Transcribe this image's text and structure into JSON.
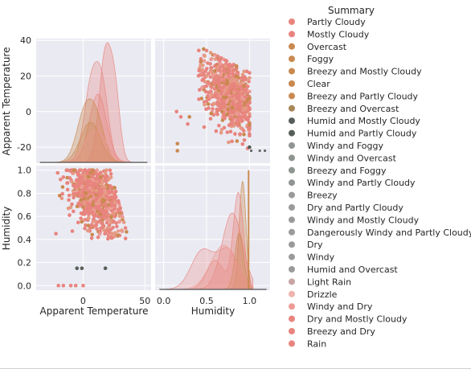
{
  "chart_data": {
    "type": "scatter",
    "kind": "pairplot",
    "variables": [
      "Apparent Temperature",
      "Humidity"
    ],
    "xlabels": [
      "Apparent Temperature",
      "Humidity"
    ],
    "ylabels": [
      "Apparent Temperature",
      "Humidity"
    ],
    "axes": {
      "apparent_temperature": {
        "range": [
          -38,
          55
        ],
        "ticks": [
          0,
          50
        ],
        "row_range": [
          -29,
          41
        ],
        "row_ticks": [
          -20,
          0,
          20,
          40
        ]
      },
      "humidity": {
        "range": [
          -0.1,
          1.24
        ],
        "ticks": [
          0.0,
          0.5,
          1.0
        ],
        "row_range": [
          -0.04,
          1.04
        ],
        "row_ticks": [
          0.0,
          0.2,
          0.4,
          0.6,
          0.8,
          1.0
        ]
      }
    },
    "grid": true,
    "diagonal": "kde",
    "legend": {
      "title": "Summary",
      "placement": "right",
      "entries": [
        "Partly Cloudy",
        "Mostly Cloudy",
        "Overcast",
        "Foggy",
        "Breezy and Mostly Cloudy",
        "Clear",
        "Breezy and Partly Cloudy",
        "Breezy and Overcast",
        "Humid and Mostly Cloudy",
        "Humid and Partly Cloudy",
        "Windy and Foggy",
        "Windy and Overcast",
        "Breezy and Foggy",
        "Windy and Partly Cloudy",
        "Breezy",
        "Dry and Partly Cloudy",
        "Windy and Mostly Cloudy",
        "Dangerously Windy and Partly Cloudy",
        "Dry",
        "Windy",
        "Humid and Overcast",
        "Light Rain",
        "Drizzle",
        "Windy and Dry",
        "Dry and Mostly Cloudy",
        "Breezy and Dry",
        "Rain"
      ],
      "colors": [
        "#e8847e",
        "#e8847e",
        "#c9894f",
        "#c9894f",
        "#c9894f",
        "#c9894f",
        "#c9894f",
        "#a78757",
        "#575f5a",
        "#575f5a",
        "#8f9590",
        "#8f9590",
        "#8f9590",
        "#8f9590",
        "#9a9a9a",
        "#9a9a9a",
        "#9a9a9a",
        "#9a9a9a",
        "#9a9a9a",
        "#9a9a9a",
        "#9a9a9a",
        "#c7a5a3",
        "#f0b3ad",
        "#ec9b95",
        "#e8847e",
        "#e8847e",
        "#e8847e"
      ]
    },
    "palette": {
      "background": "#eaeaf2",
      "grid": "#ffffff",
      "main": "#e8847e",
      "secondary": "#c9894f",
      "dark": "#575f5a"
    }
  }
}
